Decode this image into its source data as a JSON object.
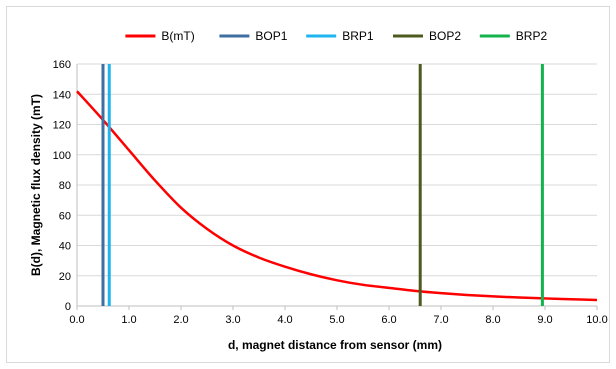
{
  "chart_data": {
    "type": "line",
    "title": "",
    "xlabel": "d, magnet distance from sensor (mm)",
    "ylabel": "B(d), Magnetic flux density (mT)",
    "xlim": [
      0,
      10
    ],
    "ylim": [
      0,
      160
    ],
    "x_ticks": [
      "0.0",
      "1.0",
      "2.0",
      "3.0",
      "4.0",
      "5.0",
      "6.0",
      "7.0",
      "8.0",
      "9.0",
      "10.0"
    ],
    "y_ticks": [
      "0",
      "20",
      "40",
      "60",
      "80",
      "100",
      "120",
      "140",
      "160"
    ],
    "grid": "horizontal",
    "legend_position": "top",
    "series": [
      {
        "name": "B(mT)",
        "color": "#ff0000",
        "kind": "curve",
        "x": [
          0,
          0.5,
          1,
          1.5,
          2,
          2.5,
          3,
          3.5,
          4,
          4.5,
          5,
          5.5,
          6,
          6.5,
          7,
          7.5,
          8,
          8.5,
          9,
          9.5,
          10
        ],
        "y": [
          142,
          123,
          103,
          83,
          65,
          51,
          40,
          32,
          26,
          21,
          17,
          14,
          12,
          10,
          8.5,
          7.3,
          6.4,
          5.6,
          5,
          4.5,
          4
        ]
      },
      {
        "name": "BOP1",
        "color": "#3f6ea3",
        "kind": "vline",
        "x": 0.5
      },
      {
        "name": "BRP1",
        "color": "#1fb4ef",
        "kind": "vline",
        "x": 0.62
      },
      {
        "name": "BOP2",
        "color": "#4d5a1e",
        "kind": "vline",
        "x": 6.6
      },
      {
        "name": "BRP2",
        "color": "#13b34b",
        "kind": "vline",
        "x": 8.95
      }
    ]
  }
}
